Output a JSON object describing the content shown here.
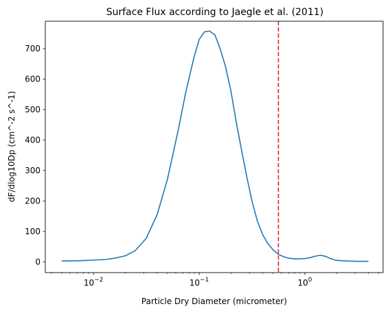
{
  "chart_data": {
    "type": "line",
    "title": "Surface Flux according to Jaegle et al. (2011)",
    "xlabel": "Particle Dry Diameter (micrometer)",
    "ylabel": "dF/dlog10Dp (cm^-2 s^-1)",
    "xscale": "log",
    "xlim": [
      0.0035,
      5.5
    ],
    "ylim": [
      -35,
      790
    ],
    "grid": false,
    "xticks": [
      {
        "value": 0.01,
        "base": "10",
        "exp": "−2"
      },
      {
        "value": 0.1,
        "base": "10",
        "exp": "−1"
      },
      {
        "value": 1,
        "base": "10",
        "exp": "0"
      }
    ],
    "yticks": [
      0,
      100,
      200,
      300,
      400,
      500,
      600,
      700
    ],
    "series": [
      {
        "color": "#1f77b4",
        "x": [
          0.005,
          0.0075,
          0.01,
          0.013,
          0.0158,
          0.02,
          0.025,
          0.0316,
          0.04,
          0.05,
          0.0631,
          0.075,
          0.0891,
          0.1,
          0.112,
          0.125,
          0.141,
          0.158,
          0.178,
          0.2,
          0.224,
          0.251,
          0.282,
          0.316,
          0.355,
          0.398,
          0.447,
          0.5,
          0.562,
          0.631,
          0.708,
          0.794,
          0.891,
          1.0,
          1.12,
          1.26,
          1.41,
          1.58,
          1.78,
          2.0,
          2.5,
          3.16,
          4.0
        ],
        "y": [
          3,
          4,
          6,
          8,
          12,
          20,
          38,
          78,
          155,
          270,
          430,
          560,
          670,
          730,
          755,
          758,
          745,
          700,
          640,
          560,
          460,
          370,
          280,
          200,
          135,
          90,
          60,
          40,
          25,
          17,
          12,
          10,
          10,
          11,
          14,
          19,
          22,
          18,
          10,
          5,
          3,
          2,
          2
        ]
      }
    ],
    "annotations": [
      {
        "type": "vline",
        "x": 0.562,
        "color": "#d62728",
        "style": "dashed"
      }
    ]
  }
}
